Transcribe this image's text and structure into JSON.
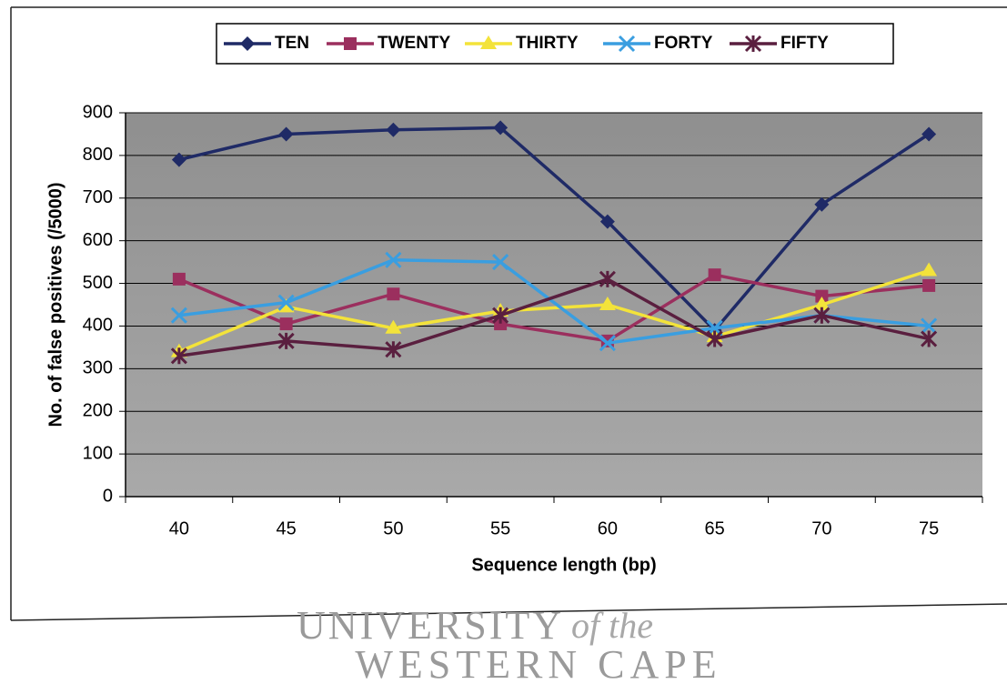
{
  "chart_data": {
    "type": "line",
    "y_label": "No. of false positives (/5000)",
    "x_label": "Sequence length (bp)",
    "categories": [
      "40",
      "45",
      "50",
      "55",
      "60",
      "65",
      "70",
      "75"
    ],
    "series": [
      {
        "name": "TEN",
        "color": "#1f2a66",
        "marker": "diamond",
        "values": [
          790,
          850,
          860,
          865,
          645,
          390,
          685,
          850
        ]
      },
      {
        "name": "TWENTY",
        "color": "#9b2f5e",
        "marker": "square",
        "values": [
          510,
          405,
          475,
          405,
          365,
          520,
          470,
          495
        ]
      },
      {
        "name": "THIRTY",
        "color": "#f3e33a",
        "marker": "triangle",
        "values": [
          340,
          445,
          395,
          435,
          450,
          375,
          450,
          530
        ]
      },
      {
        "name": "FORTY",
        "color": "#3a9ee0",
        "marker": "x",
        "values": [
          425,
          455,
          555,
          550,
          360,
          395,
          425,
          400
        ]
      },
      {
        "name": "FIFTY",
        "color": "#5a1f3f",
        "marker": "star",
        "values": [
          330,
          365,
          345,
          425,
          510,
          370,
          425,
          370
        ]
      }
    ],
    "ylim": [
      0,
      900
    ],
    "yticks": [
      0,
      100,
      200,
      300,
      400,
      500,
      600,
      700,
      800,
      900
    ],
    "grid": true,
    "legend": "top"
  },
  "watermark": {
    "line1": "UNIVERSITY",
    "line1_suffix": "of the",
    "line2": "WESTERN CAPE"
  }
}
